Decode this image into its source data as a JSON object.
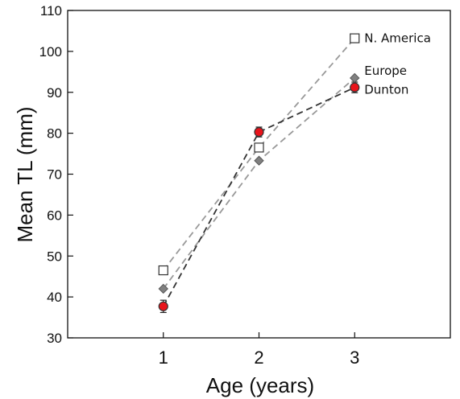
{
  "chart_data": {
    "type": "line",
    "xlabel": "Age (years)",
    "ylabel": "Mean TL (mm)",
    "x": [
      1,
      2,
      3
    ],
    "xlim": [
      0,
      4
    ],
    "ylim": [
      30,
      110
    ],
    "yticks": [
      30,
      40,
      50,
      60,
      70,
      80,
      90,
      100,
      110
    ],
    "xticks": [
      1,
      2,
      3
    ],
    "grid": false,
    "legend": "direct labels at right end of each series",
    "series": [
      {
        "name": "N. America",
        "values": [
          46.5,
          76.5,
          103.2
        ],
        "marker": "open-square",
        "line_color": "#999999",
        "marker_fill": "#ffffff",
        "marker_stroke": "#333333"
      },
      {
        "name": "Europe",
        "values": [
          42.0,
          73.3,
          93.5
        ],
        "marker": "diamond",
        "line_color": "#999999",
        "marker_fill": "#808080",
        "marker_stroke": "#555555"
      },
      {
        "name": "Dunton",
        "values": [
          37.7,
          80.3,
          91.2
        ],
        "errors": [
          1.5,
          1.2,
          1.3
        ],
        "marker": "circle",
        "line_color": "#333333",
        "marker_fill": "#e8141b",
        "marker_stroke": "#333333"
      }
    ]
  }
}
